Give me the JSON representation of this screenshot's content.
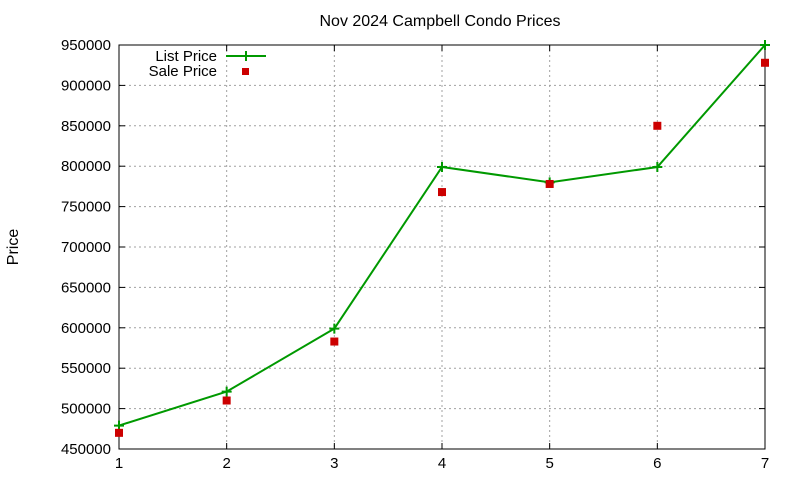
{
  "chart_data": {
    "type": "line",
    "title": "Nov 2024 Campbell Condo Prices",
    "xlabel": "",
    "ylabel": "Price",
    "x": [
      1,
      2,
      3,
      4,
      5,
      6,
      7
    ],
    "xlim": [
      1,
      7
    ],
    "ylim": [
      450000,
      950000
    ],
    "xticks": [
      "1",
      "2",
      "3",
      "4",
      "5",
      "6",
      "7"
    ],
    "yticks": [
      "450000",
      "500000",
      "550000",
      "600000",
      "650000",
      "700000",
      "750000",
      "800000",
      "850000",
      "900000",
      "950000"
    ],
    "grid": true,
    "legend_position": "top-left",
    "series": [
      {
        "name": "List Price",
        "style": "line+plus-marker",
        "color": "#009900",
        "values": [
          479000,
          521000,
          599000,
          799000,
          780000,
          799000,
          950000
        ]
      },
      {
        "name": "Sale Price",
        "style": "square-marker",
        "color": "#cc0000",
        "values": [
          470000,
          510000,
          583000,
          768000,
          778000,
          850000,
          928000
        ]
      }
    ]
  }
}
